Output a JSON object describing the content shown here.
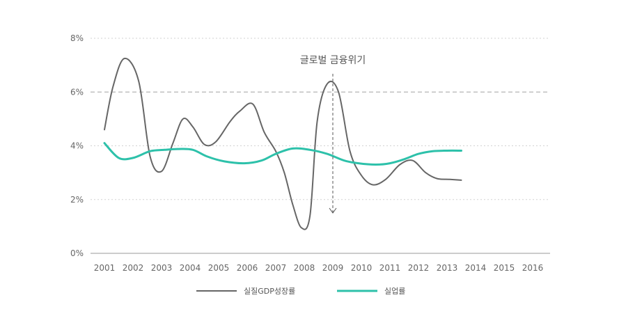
{
  "chart_data": {
    "type": "line",
    "x": [
      2001,
      2002,
      2003,
      2004,
      2005,
      2006,
      2007,
      2008,
      2009,
      2010,
      2011,
      2012,
      2013,
      2014,
      2015,
      2016
    ],
    "x_tick_labels": [
      "2001",
      "2002",
      "2003",
      "2004",
      "2005",
      "2006",
      "2007",
      "2008",
      "2009",
      "2010",
      "2011",
      "2012",
      "2013",
      "2014",
      "2015",
      "2016"
    ],
    "y_tick_labels": [
      "0%",
      "2%",
      "4%",
      "6%",
      "8%"
    ],
    "y_ticks": [
      0,
      2,
      4,
      6,
      8
    ],
    "ylim": [
      0,
      8
    ],
    "xlim": [
      2001,
      2016
    ],
    "series": [
      {
        "name": "실질GDP성장률",
        "color": "#666666",
        "points": [
          [
            2001.0,
            4.6
          ],
          [
            2001.3,
            6.2
          ],
          [
            2001.7,
            7.25
          ],
          [
            2002.2,
            6.4
          ],
          [
            2002.6,
            3.6
          ],
          [
            2003.0,
            3.05
          ],
          [
            2003.4,
            4.1
          ],
          [
            2003.75,
            5.0
          ],
          [
            2004.1,
            4.7
          ],
          [
            2004.5,
            4.05
          ],
          [
            2004.9,
            4.15
          ],
          [
            2005.4,
            4.9
          ],
          [
            2005.75,
            5.3
          ],
          [
            2006.2,
            5.55
          ],
          [
            2006.6,
            4.5
          ],
          [
            2007.0,
            3.8
          ],
          [
            2007.3,
            3.0
          ],
          [
            2007.6,
            1.8
          ],
          [
            2007.9,
            0.95
          ],
          [
            2008.2,
            1.4
          ],
          [
            2008.45,
            4.9
          ],
          [
            2008.8,
            6.3
          ],
          [
            2009.2,
            6.0
          ],
          [
            2009.6,
            3.8
          ],
          [
            2010.0,
            2.9
          ],
          [
            2010.4,
            2.55
          ],
          [
            2010.85,
            2.75
          ],
          [
            2011.35,
            3.3
          ],
          [
            2011.8,
            3.45
          ],
          [
            2012.25,
            3.0
          ],
          [
            2012.65,
            2.78
          ],
          [
            2013.1,
            2.75
          ],
          [
            2013.5,
            2.72
          ]
        ]
      },
      {
        "name": "실업률",
        "color": "#2dc1aa",
        "points": [
          [
            2001.0,
            4.1
          ],
          [
            2001.5,
            3.55
          ],
          [
            2002.0,
            3.55
          ],
          [
            2002.6,
            3.8
          ],
          [
            2003.1,
            3.85
          ],
          [
            2003.6,
            3.88
          ],
          [
            2004.1,
            3.85
          ],
          [
            2004.6,
            3.6
          ],
          [
            2005.2,
            3.42
          ],
          [
            2005.9,
            3.35
          ],
          [
            2006.5,
            3.45
          ],
          [
            2007.0,
            3.7
          ],
          [
            2007.6,
            3.9
          ],
          [
            2008.2,
            3.85
          ],
          [
            2008.8,
            3.7
          ],
          [
            2009.4,
            3.45
          ],
          [
            2009.9,
            3.35
          ],
          [
            2010.5,
            3.3
          ],
          [
            2011.0,
            3.35
          ],
          [
            2011.5,
            3.5
          ],
          [
            2012.0,
            3.7
          ],
          [
            2012.5,
            3.8
          ],
          [
            2013.0,
            3.82
          ],
          [
            2013.5,
            3.82
          ]
        ]
      }
    ],
    "reference_line": {
      "y": 6,
      "style": "dashed"
    },
    "annotation": {
      "text": "글로벌 금융위기",
      "x": 2009
    },
    "legend": {
      "placement": "bottom",
      "entries": [
        "실질GDP성장률",
        "실업률"
      ]
    },
    "grid": {
      "horizontal": true,
      "style": "dotted"
    }
  }
}
